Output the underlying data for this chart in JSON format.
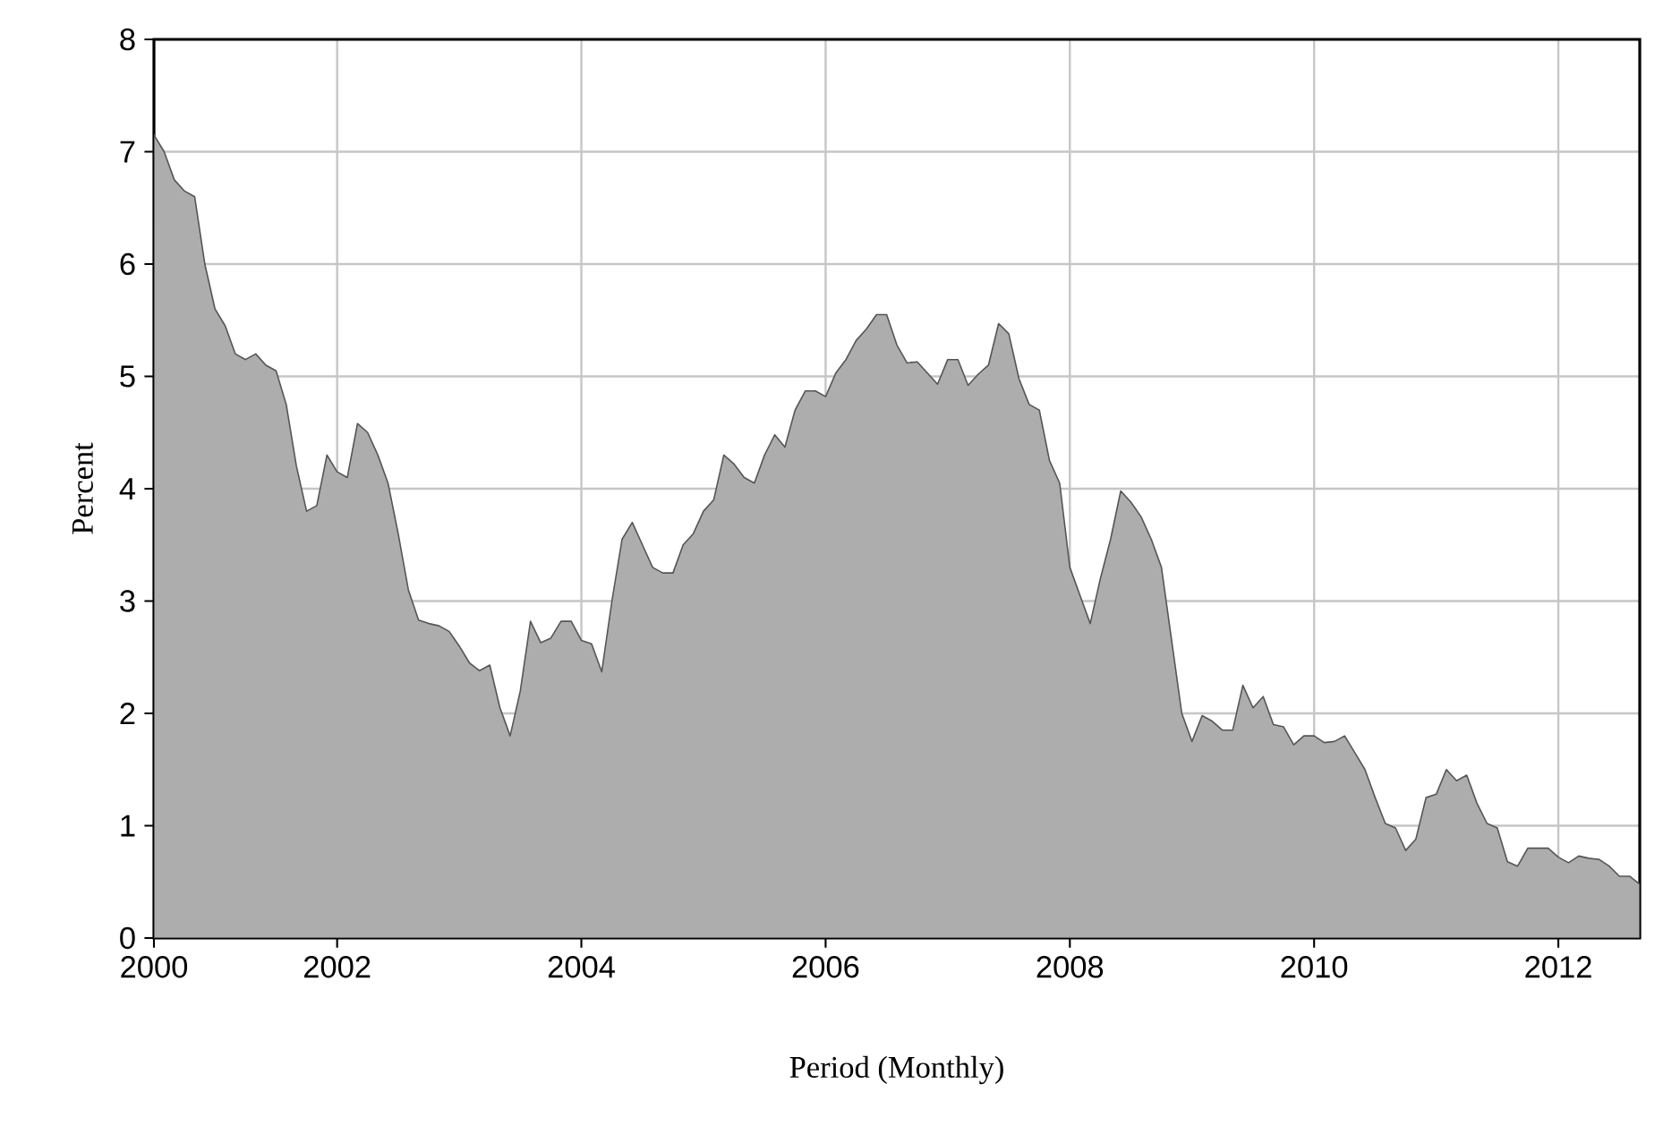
{
  "chart_data": {
    "type": "area",
    "xlabel": "Period (Monthly)",
    "ylabel": "Percent",
    "xlim": [
      "2000-07",
      "2012-09"
    ],
    "xticks": [
      {
        "value": "2000-07",
        "label": "2000"
      },
      {
        "value": "2002-01",
        "label": "2002"
      },
      {
        "value": "2004-01",
        "label": "2004"
      },
      {
        "value": "2006-01",
        "label": "2006"
      },
      {
        "value": "2008-01",
        "label": "2008"
      },
      {
        "value": "2010-01",
        "label": "2010"
      },
      {
        "value": "2012-01",
        "label": "2012"
      }
    ],
    "ylim": [
      0,
      8
    ],
    "yticks": [
      0,
      1,
      2,
      3,
      4,
      5,
      6,
      7,
      8
    ],
    "grid": true,
    "x": [
      "2000-07",
      "2000-08",
      "2000-09",
      "2000-10",
      "2000-11",
      "2000-12",
      "2001-01",
      "2001-02",
      "2001-03",
      "2001-04",
      "2001-05",
      "2001-06",
      "2001-07",
      "2001-08",
      "2001-09",
      "2001-10",
      "2001-11",
      "2001-12",
      "2002-01",
      "2002-02",
      "2002-03",
      "2002-04",
      "2002-05",
      "2002-06",
      "2002-07",
      "2002-08",
      "2002-09",
      "2002-10",
      "2002-11",
      "2002-12",
      "2003-01",
      "2003-02",
      "2003-03",
      "2003-04",
      "2003-05",
      "2003-06",
      "2003-07",
      "2003-08",
      "2003-09",
      "2003-10",
      "2003-11",
      "2003-12",
      "2004-01",
      "2004-02",
      "2004-03",
      "2004-04",
      "2004-05",
      "2004-06",
      "2004-07",
      "2004-08",
      "2004-09",
      "2004-10",
      "2004-11",
      "2004-12",
      "2005-01",
      "2005-02",
      "2005-03",
      "2005-04",
      "2005-05",
      "2005-06",
      "2005-07",
      "2005-08",
      "2005-09",
      "2005-10",
      "2005-11",
      "2005-12",
      "2006-01",
      "2006-02",
      "2006-03",
      "2006-04",
      "2006-05",
      "2006-06",
      "2006-07",
      "2006-08",
      "2006-09",
      "2006-10",
      "2006-11",
      "2006-12",
      "2007-01",
      "2007-02",
      "2007-03",
      "2007-04",
      "2007-05",
      "2007-06",
      "2007-07",
      "2007-08",
      "2007-09",
      "2007-10",
      "2007-11",
      "2007-12",
      "2008-01",
      "2008-02",
      "2008-03",
      "2008-04",
      "2008-05",
      "2008-06",
      "2008-07",
      "2008-08",
      "2008-09",
      "2008-10",
      "2008-11",
      "2008-12",
      "2009-01",
      "2009-02",
      "2009-03",
      "2009-04",
      "2009-05",
      "2009-06",
      "2009-07",
      "2009-08",
      "2009-09",
      "2009-10",
      "2009-11",
      "2009-12",
      "2010-01",
      "2010-02",
      "2010-03",
      "2010-04",
      "2010-05",
      "2010-06",
      "2010-07",
      "2010-08",
      "2010-09",
      "2010-10",
      "2010-11",
      "2010-12",
      "2011-01",
      "2011-02",
      "2011-03",
      "2011-04",
      "2011-05",
      "2011-06",
      "2011-07",
      "2011-08",
      "2011-09",
      "2011-10",
      "2011-11",
      "2011-12",
      "2012-01",
      "2012-02",
      "2012-03",
      "2012-04",
      "2012-05",
      "2012-06",
      "2012-07",
      "2012-08",
      "2012-09"
    ],
    "series": [
      {
        "color": "#adadad",
        "values": [
          7.15,
          7.0,
          6.75,
          6.65,
          6.6,
          6.0,
          5.6,
          5.45,
          5.2,
          5.15,
          5.2,
          5.1,
          5.05,
          4.75,
          4.2,
          3.8,
          3.85,
          4.3,
          4.15,
          4.1,
          4.58,
          4.5,
          4.3,
          4.05,
          3.6,
          3.1,
          2.83,
          2.8,
          2.78,
          2.73,
          2.6,
          2.45,
          2.38,
          2.43,
          2.05,
          1.8,
          2.2,
          2.82,
          2.63,
          2.67,
          2.82,
          2.82,
          2.65,
          2.62,
          2.37,
          3.0,
          3.55,
          3.7,
          3.5,
          3.3,
          3.25,
          3.25,
          3.5,
          3.6,
          3.8,
          3.9,
          4.3,
          4.22,
          4.1,
          4.05,
          4.3,
          4.48,
          4.37,
          4.7,
          4.87,
          4.87,
          4.82,
          5.03,
          5.15,
          5.32,
          5.42,
          5.55,
          5.55,
          5.28,
          5.12,
          5.13,
          5.03,
          4.93,
          5.15,
          5.15,
          4.92,
          5.02,
          5.1,
          5.47,
          5.38,
          4.98,
          4.75,
          4.7,
          4.25,
          4.05,
          3.3,
          3.05,
          2.8,
          3.2,
          3.55,
          3.98,
          3.88,
          3.75,
          3.55,
          3.3,
          2.65,
          2.0,
          1.75,
          1.98,
          1.93,
          1.85,
          1.85,
          2.25,
          2.05,
          2.15,
          1.9,
          1.88,
          1.72,
          1.8,
          1.8,
          1.74,
          1.75,
          1.8,
          1.65,
          1.5,
          1.25,
          1.02,
          0.98,
          0.78,
          0.88,
          1.25,
          1.28,
          1.5,
          1.4,
          1.45,
          1.2,
          1.02,
          0.98,
          0.68,
          0.64,
          0.8,
          0.8,
          0.8,
          0.72,
          0.67,
          0.73,
          0.71,
          0.7,
          0.64,
          0.55,
          0.55,
          0.48
        ]
      }
    ]
  }
}
